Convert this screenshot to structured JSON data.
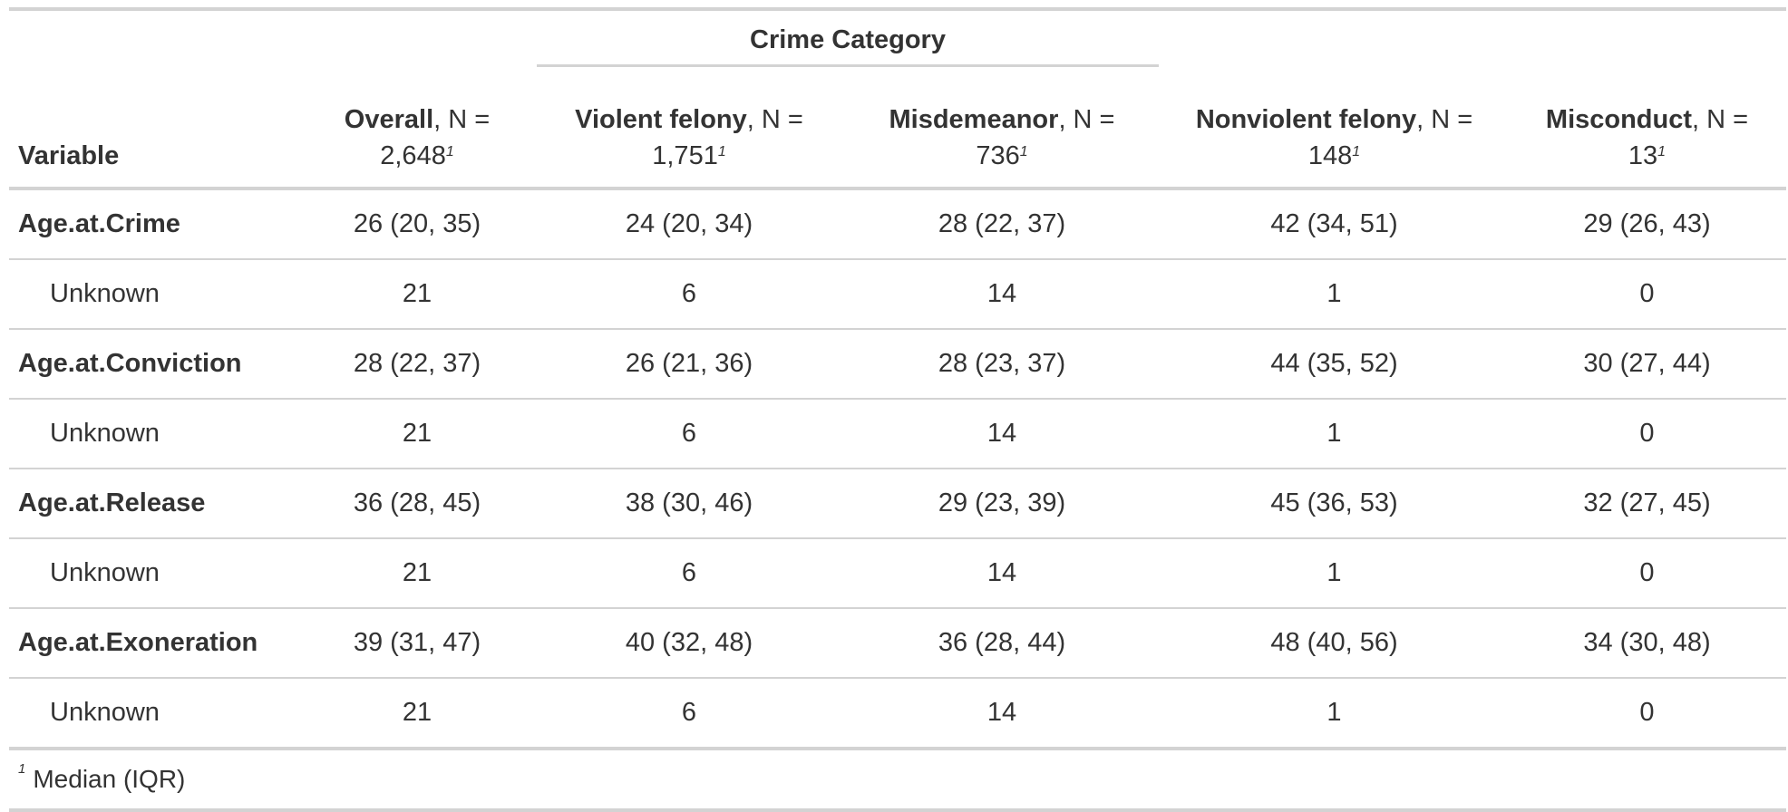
{
  "spanner": {
    "label": "Crime Category"
  },
  "columns": [
    {
      "label": "Variable"
    },
    {
      "label": "Overall",
      "suffix": ", N =",
      "n": "2,648",
      "fn": "1"
    },
    {
      "label": "Violent felony",
      "suffix": ", N =",
      "n": "1,751",
      "fn": "1"
    },
    {
      "label": "Misdemeanor",
      "suffix": ", N =",
      "n": "736",
      "fn": "1"
    },
    {
      "label": "Nonviolent felony",
      "suffix": ", N =",
      "n": "148",
      "fn": "1"
    },
    {
      "label": "Misconduct",
      "suffix": ", N =",
      "n": "13",
      "fn": "1"
    }
  ],
  "rows": [
    {
      "label": "Age.at.Crime",
      "cells": [
        "26 (20, 35)",
        "24 (20, 34)",
        "28 (22, 37)",
        "42 (34, 51)",
        "29 (26, 43)"
      ]
    },
    {
      "label": "Unknown",
      "cells": [
        "21",
        "6",
        "14",
        "1",
        "0"
      ]
    },
    {
      "label": "Age.at.Conviction",
      "cells": [
        "28 (22, 37)",
        "26 (21, 36)",
        "28 (23, 37)",
        "44 (35, 52)",
        "30 (27, 44)"
      ]
    },
    {
      "label": "Unknown",
      "cells": [
        "21",
        "6",
        "14",
        "1",
        "0"
      ]
    },
    {
      "label": "Age.at.Release",
      "cells": [
        "36 (28, 45)",
        "38 (30, 46)",
        "29 (23, 39)",
        "45 (36, 53)",
        "32 (27, 45)"
      ]
    },
    {
      "label": "Unknown",
      "cells": [
        "21",
        "6",
        "14",
        "1",
        "0"
      ]
    },
    {
      "label": "Age.at.Exoneration",
      "cells": [
        "39 (31, 47)",
        "40 (32, 48)",
        "36 (28, 44)",
        "48 (40, 56)",
        "34 (30, 48)"
      ]
    },
    {
      "label": "Unknown",
      "cells": [
        "21",
        "6",
        "14",
        "1",
        "0"
      ]
    }
  ],
  "footnote": {
    "mark": "1",
    "text": "Median (IQR)"
  }
}
